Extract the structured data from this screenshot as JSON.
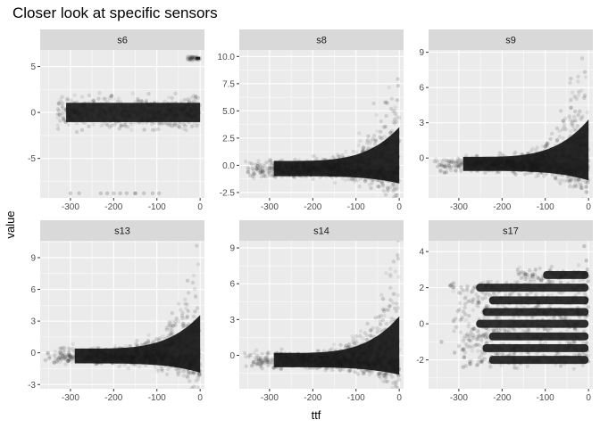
{
  "chart_data": {
    "type": "scatter",
    "title": "Closer look at specific sensors",
    "xlabel": "ttf",
    "ylabel": "value",
    "x_range": [
      -370,
      10
    ],
    "x_ticks": [
      -300,
      -200,
      -100,
      0
    ],
    "x_tick_labels": [
      "-300",
      "-200",
      "-100",
      "0"
    ],
    "grid": true,
    "legend": "none",
    "colors": {
      "points": "#1a1a1a",
      "panel_bg": "#ebebeb",
      "strip_bg": "#d9d9d9",
      "grid": "#ffffff"
    },
    "facets": [
      {
        "name": "s6",
        "y_range": [
          -9.3,
          6.8
        ],
        "y_ticks": [
          5,
          0,
          -5
        ],
        "y_tick_labels": [
          "5",
          "0",
          "-5"
        ],
        "shape": "bands",
        "bands": [
          {
            "x_start": -330,
            "x_end": 0,
            "y_center": 0.0,
            "half_width": 1.4
          },
          {
            "x_start": -30,
            "x_end": 0,
            "y_center": 5.9,
            "half_width": 0.2
          }
        ],
        "outliers": [
          [
            -300,
            -8.8
          ],
          [
            -280,
            -8.8
          ],
          [
            -230,
            -8.8
          ],
          [
            -215,
            -8.8
          ],
          [
            -200,
            -8.8
          ],
          [
            -185,
            -8.8
          ],
          [
            -170,
            -8.8
          ],
          [
            -150,
            -8.8
          ],
          [
            -130,
            -8.8
          ],
          [
            -110,
            -8.8
          ],
          [
            -95,
            -8.8
          ],
          [
            -150,
            -8.8
          ],
          [
            -10,
            -0.5
          ]
        ]
      },
      {
        "name": "s8",
        "y_range": [
          -3.0,
          10.6
        ],
        "y_ticks": [
          10.0,
          7.5,
          5.0,
          2.5,
          0.0,
          -2.5
        ],
        "y_tick_labels": [
          "10.0",
          "7.5",
          "5.0",
          "2.5",
          "0.0",
          "-2.5"
        ],
        "shape": "funnel",
        "funnel": {
          "x_start": -360,
          "core_start": -290,
          "base": -0.3,
          "half_spread": 0.7,
          "rise_to": 8.6,
          "fall_to": -2.2
        }
      },
      {
        "name": "s9",
        "y_range": [
          -3.4,
          9.2
        ],
        "y_ticks": [
          9,
          6,
          3,
          0
        ],
        "y_tick_labels": [
          "9",
          "6",
          "3",
          "0"
        ],
        "shape": "funnel",
        "funnel": {
          "x_start": -360,
          "core_start": -290,
          "base": -0.5,
          "half_spread": 0.6,
          "rise_to": 8.6,
          "fall_to": -2.8
        }
      },
      {
        "name": "s13",
        "y_range": [
          -3.4,
          10.6
        ],
        "y_ticks": [
          9,
          6,
          3,
          0,
          -3
        ],
        "y_tick_labels": [
          "9",
          "6",
          "3",
          "0",
          "-3"
        ],
        "shape": "funnel",
        "funnel": {
          "x_start": -360,
          "core_start": -290,
          "base": -0.3,
          "half_spread": 0.7,
          "rise_to": 8.8,
          "fall_to": -2.8
        }
      },
      {
        "name": "s14",
        "y_range": [
          -2.8,
          9.6
        ],
        "y_ticks": [
          9,
          6,
          3,
          0
        ],
        "y_tick_labels": [
          "9",
          "6",
          "3",
          "0"
        ],
        "shape": "funnel",
        "funnel": {
          "x_start": -360,
          "core_start": -290,
          "base": -0.4,
          "half_spread": 0.6,
          "rise_to": 8.4,
          "fall_to": -2.2
        }
      },
      {
        "name": "s17",
        "y_range": [
          -3.6,
          4.6
        ],
        "y_ticks": [
          4,
          2,
          0,
          -2
        ],
        "y_tick_labels": [
          "4",
          "2",
          "0",
          "-2"
        ],
        "shape": "levels",
        "levels": [
          -2.0,
          -1.35,
          -0.7,
          0.0,
          0.65,
          1.3,
          2.0,
          2.7
        ],
        "level_extent": {
          "x_start": -320,
          "x_end": 0
        },
        "outliers": [
          [
            -340,
            -1.0
          ],
          [
            -310,
            -1.6
          ],
          [
            -290,
            -2.4
          ],
          [
            -10,
            4.3
          ],
          [
            -5,
            3.5
          ]
        ]
      }
    ]
  }
}
